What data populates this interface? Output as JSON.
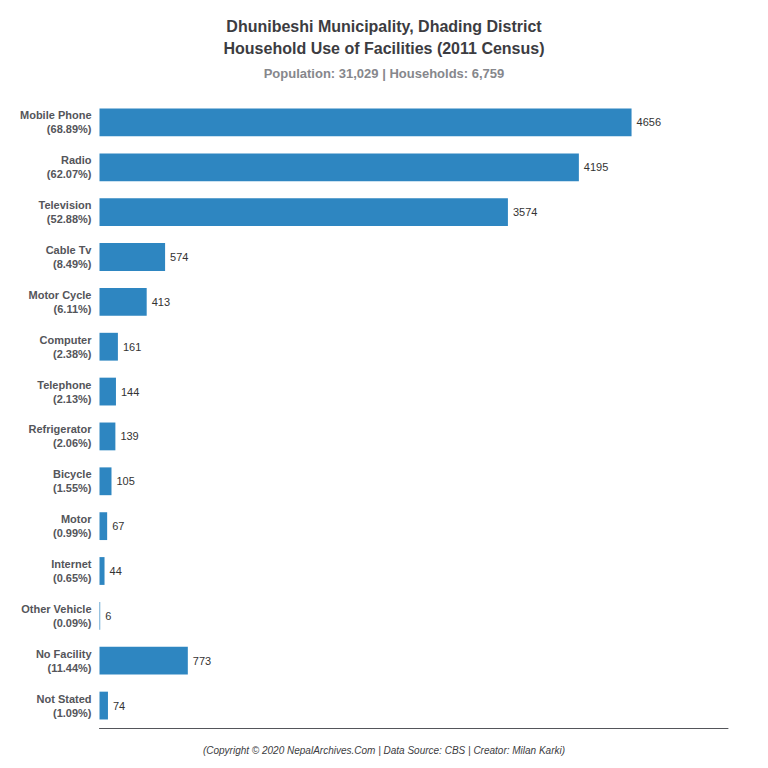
{
  "chart_data": {
    "type": "bar",
    "orientation": "horizontal",
    "title": "Dhunibeshi Municipality, Dhading District\nHousehold Use of Facilities (2011 Census)",
    "subtitle": "Population: 31,029 | Households: 6,759",
    "annotations": [
      "(Copyright © 2020 NepalArchives.Com | Data Source: CBS | Creator: Milan Karki)"
    ],
    "categories": [
      "Mobile Phone\n(68.89%)",
      "Radio\n(62.07%)",
      "Television\n(52.88%)",
      "Cable Tv\n(8.49%)",
      "Motor Cycle\n(6.11%)",
      "Computer\n(2.38%)",
      "Telephone\n(2.13%)",
      "Refrigerator\n(2.06%)",
      "Bicycle\n(1.55%)",
      "Motor\n(0.99%)",
      "Internet\n(0.65%)",
      "Other Vehicle\n(0.09%)",
      "No Facility\n(11.44%)",
      "Not Stated\n(1.09%)"
    ],
    "values": [
      4656,
      4195,
      3574,
      574,
      413,
      161,
      144,
      139,
      105,
      67,
      44,
      6,
      773,
      74
    ],
    "color": "#2e86c1",
    "xlim": [
      0,
      5500
    ],
    "grid": false,
    "data_labels": true,
    "tick_labels": "y"
  }
}
